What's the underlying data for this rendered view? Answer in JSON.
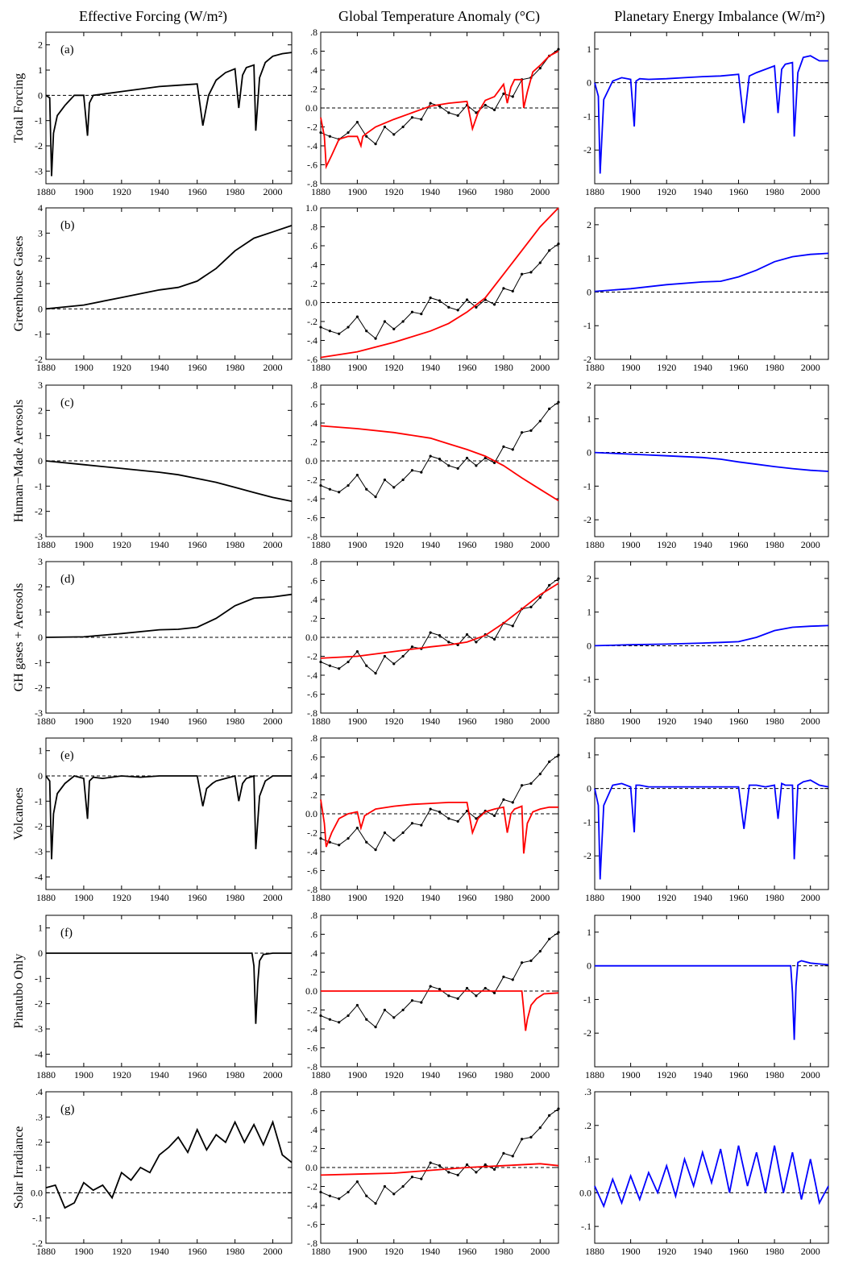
{
  "colors": {
    "observed": "#000000",
    "model_temp": "#ff0000",
    "imbalance": "#0000ff",
    "zero_line": "#000000"
  },
  "headers": [
    "Effective Forcing (W/m²)",
    "Global Temperature Anomaly (°C)",
    "Planetary Energy Imbalance (W/m²)"
  ],
  "x_axis": {
    "range": [
      1880,
      2010
    ],
    "ticks": [
      "1880",
      "1900",
      "1920",
      "1940",
      "1960",
      "1980",
      "2000"
    ]
  },
  "temperature_axis": {
    "ylim": [
      -0.8,
      0.8
    ],
    "ticks": [
      "-.8",
      "-.6",
      "-.4",
      "-.2",
      "0.0",
      ".2",
      ".4",
      ".6",
      ".8"
    ],
    "ticks_b": [
      "-.6",
      "-.4",
      "-.2",
      "0.0",
      ".2",
      ".4",
      ".6",
      ".8",
      "1.0"
    ],
    "ylim_b": [
      -0.6,
      1.0
    ]
  },
  "observed_temperature": {
    "years": [
      1880,
      1885,
      1890,
      1895,
      1900,
      1905,
      1910,
      1915,
      1920,
      1925,
      1930,
      1935,
      1940,
      1945,
      1950,
      1955,
      1960,
      1965,
      1970,
      1975,
      1980,
      1985,
      1990,
      1995,
      2000,
      2005,
      2010
    ],
    "values": [
      -0.26,
      -0.3,
      -0.33,
      -0.26,
      -0.15,
      -0.3,
      -0.38,
      -0.2,
      -0.28,
      -0.2,
      -0.1,
      -0.12,
      0.05,
      0.02,
      -0.05,
      -0.08,
      0.03,
      -0.05,
      0.03,
      -0.02,
      0.15,
      0.12,
      0.3,
      0.32,
      0.42,
      0.55,
      0.62
    ]
  },
  "rows": [
    {
      "id": "a",
      "panel_label": "(a)",
      "row_label": "Total Forcing",
      "forcing": {
        "ylim": [
          -3.5,
          2.5
        ],
        "ticks": [
          "-3",
          "-2",
          "-1",
          "0",
          "1",
          "2"
        ],
        "x": [
          1880,
          1882,
          1883,
          1884,
          1886,
          1890,
          1895,
          1900,
          1902,
          1903,
          1905,
          1910,
          1920,
          1930,
          1940,
          1950,
          1960,
          1963,
          1966,
          1970,
          1975,
          1980,
          1982,
          1984,
          1986,
          1990,
          1991,
          1993,
          1996,
          2000,
          2005,
          2010
        ],
        "y": [
          0,
          -0.1,
          -3.2,
          -1.5,
          -0.8,
          -0.4,
          0,
          0,
          -1.6,
          -0.3,
          0,
          0.05,
          0.15,
          0.25,
          0.35,
          0.4,
          0.45,
          -1.2,
          0,
          0.6,
          0.9,
          1.05,
          -0.5,
          0.8,
          1.1,
          1.2,
          -1.4,
          0.7,
          1.3,
          1.55,
          1.65,
          1.7
        ]
      },
      "model": {
        "x": [
          1880,
          1882,
          1883,
          1886,
          1890,
          1895,
          1900,
          1902,
          1903,
          1905,
          1910,
          1920,
          1930,
          1940,
          1950,
          1960,
          1963,
          1966,
          1970,
          1975,
          1980,
          1982,
          1984,
          1986,
          1990,
          1991,
          1993,
          1996,
          2000,
          2005,
          2010
        ],
        "y": [
          -0.1,
          -0.3,
          -0.62,
          -0.5,
          -0.33,
          -0.3,
          -0.3,
          -0.4,
          -0.3,
          -0.27,
          -0.2,
          -0.12,
          -0.05,
          0.02,
          0.05,
          0.07,
          -0.22,
          -0.05,
          0.08,
          0.12,
          0.25,
          0.05,
          0.22,
          0.3,
          0.3,
          0.0,
          0.17,
          0.38,
          0.45,
          0.55,
          0.6
        ]
      },
      "imbalance": {
        "ylim": [
          -3.0,
          1.5
        ],
        "ticks": [
          "-2",
          "-1",
          "0",
          "1"
        ],
        "x": [
          1880,
          1882,
          1883,
          1885,
          1890,
          1895,
          1900,
          1902,
          1903,
          1905,
          1910,
          1920,
          1930,
          1940,
          1950,
          1960,
          1963,
          1966,
          1970,
          1975,
          1980,
          1982,
          1984,
          1986,
          1990,
          1991,
          1993,
          1996,
          2000,
          2005,
          2010
        ],
        "y": [
          0,
          -0.4,
          -2.7,
          -0.5,
          0.05,
          0.15,
          0.1,
          -1.3,
          0.05,
          0.12,
          0.1,
          0.12,
          0.15,
          0.18,
          0.2,
          0.25,
          -1.2,
          0.2,
          0.3,
          0.4,
          0.5,
          -0.9,
          0.4,
          0.55,
          0.6,
          -1.6,
          0.3,
          0.75,
          0.8,
          0.65,
          0.65
        ]
      }
    },
    {
      "id": "b",
      "panel_label": "(b)",
      "row_label": "Greenhouse Gases",
      "forcing": {
        "ylim": [
          -2,
          4
        ],
        "ticks": [
          "-2",
          "-1",
          "0",
          "1",
          "2",
          "3",
          "4"
        ],
        "x": [
          1880,
          1900,
          1920,
          1940,
          1950,
          1960,
          1970,
          1980,
          1990,
          2000,
          2010
        ],
        "y": [
          0,
          0.15,
          0.45,
          0.75,
          0.85,
          1.1,
          1.6,
          2.3,
          2.8,
          3.05,
          3.3
        ]
      },
      "model": {
        "x": [
          1880,
          1900,
          1920,
          1940,
          1950,
          1960,
          1970,
          1980,
          1990,
          2000,
          2010
        ],
        "y": [
          -0.58,
          -0.52,
          -0.42,
          -0.3,
          -0.22,
          -0.1,
          0.05,
          0.3,
          0.55,
          0.8,
          1.0
        ]
      },
      "imbalance": {
        "ylim": [
          -2.0,
          2.5
        ],
        "ticks": [
          "-2",
          "-1",
          "0",
          "1",
          "2"
        ],
        "x": [
          1880,
          1900,
          1920,
          1940,
          1950,
          1960,
          1970,
          1980,
          1990,
          2000,
          2010
        ],
        "y": [
          0.02,
          0.1,
          0.22,
          0.3,
          0.32,
          0.45,
          0.65,
          0.9,
          1.05,
          1.12,
          1.15
        ]
      }
    },
    {
      "id": "c",
      "panel_label": "(c)",
      "row_label": "Human−Made Aerosols",
      "forcing": {
        "ylim": [
          -3,
          3
        ],
        "ticks": [
          "-3",
          "-2",
          "-1",
          "0",
          "1",
          "2",
          "3"
        ],
        "x": [
          1880,
          1900,
          1920,
          1940,
          1950,
          1960,
          1970,
          1980,
          1990,
          2000,
          2010
        ],
        "y": [
          0,
          -0.15,
          -0.3,
          -0.45,
          -0.55,
          -0.7,
          -0.85,
          -1.05,
          -1.25,
          -1.45,
          -1.6
        ]
      },
      "model": {
        "x": [
          1880,
          1900,
          1920,
          1940,
          1950,
          1960,
          1970,
          1980,
          1990,
          2000,
          2010
        ],
        "y": [
          0.37,
          0.34,
          0.3,
          0.24,
          0.18,
          0.12,
          0.05,
          -0.05,
          -0.18,
          -0.3,
          -0.42
        ]
      },
      "imbalance": {
        "ylim": [
          -2.5,
          2.0
        ],
        "ticks": [
          "-2",
          "-1",
          "0",
          "1",
          "2"
        ],
        "x": [
          1880,
          1900,
          1920,
          1940,
          1950,
          1960,
          1970,
          1980,
          1990,
          2000,
          2010
        ],
        "y": [
          0,
          -0.05,
          -0.1,
          -0.15,
          -0.2,
          -0.28,
          -0.35,
          -0.42,
          -0.48,
          -0.53,
          -0.56
        ]
      }
    },
    {
      "id": "d",
      "panel_label": "(d)",
      "row_label": "GH gases + Aerosols",
      "forcing": {
        "ylim": [
          -3,
          3
        ],
        "ticks": [
          "-3",
          "-2",
          "-1",
          "0",
          "1",
          "2",
          "3"
        ],
        "x": [
          1880,
          1900,
          1920,
          1940,
          1950,
          1960,
          1970,
          1980,
          1990,
          2000,
          2010
        ],
        "y": [
          0,
          0.02,
          0.15,
          0.3,
          0.32,
          0.4,
          0.75,
          1.25,
          1.55,
          1.6,
          1.7
        ]
      },
      "model": {
        "x": [
          1880,
          1900,
          1920,
          1940,
          1950,
          1960,
          1970,
          1980,
          1990,
          2000,
          2010
        ],
        "y": [
          -0.22,
          -0.2,
          -0.15,
          -0.1,
          -0.08,
          -0.05,
          0.02,
          0.15,
          0.3,
          0.45,
          0.57
        ]
      },
      "imbalance": {
        "ylim": [
          -2.0,
          2.5
        ],
        "ticks": [
          "-2",
          "-1",
          "0",
          "1",
          "2"
        ],
        "x": [
          1880,
          1900,
          1920,
          1940,
          1950,
          1960,
          1970,
          1980,
          1990,
          2000,
          2010
        ],
        "y": [
          0,
          0.03,
          0.05,
          0.08,
          0.1,
          0.12,
          0.25,
          0.45,
          0.55,
          0.58,
          0.6
        ]
      }
    },
    {
      "id": "e",
      "panel_label": "(e)",
      "row_label": "Volcanoes",
      "forcing": {
        "ylim": [
          -4.5,
          1.5
        ],
        "ticks": [
          "-4",
          "-3",
          "-2",
          "-1",
          "0",
          "1"
        ],
        "x": [
          1880,
          1882,
          1883,
          1884,
          1886,
          1890,
          1895,
          1900,
          1902,
          1903,
          1905,
          1910,
          1920,
          1930,
          1940,
          1950,
          1960,
          1963,
          1965,
          1968,
          1970,
          1975,
          1980,
          1982,
          1984,
          1986,
          1990,
          1991,
          1993,
          1996,
          2000,
          2005,
          2010
        ],
        "y": [
          0,
          -0.2,
          -3.3,
          -1.5,
          -0.7,
          -0.3,
          0,
          -0.1,
          -1.7,
          -0.2,
          -0.05,
          -0.1,
          0,
          -0.05,
          0,
          0,
          0,
          -1.2,
          -0.5,
          -0.3,
          -0.2,
          -0.1,
          0,
          -1.0,
          -0.3,
          -0.1,
          0,
          -2.9,
          -0.8,
          -0.2,
          0,
          0,
          0
        ]
      },
      "model": {
        "x": [
          1880,
          1882,
          1883,
          1886,
          1890,
          1895,
          1900,
          1902,
          1904,
          1910,
          1920,
          1930,
          1940,
          1950,
          1960,
          1963,
          1966,
          1970,
          1975,
          1980,
          1982,
          1984,
          1986,
          1990,
          1991,
          1993,
          1996,
          2000,
          2005,
          2010
        ],
        "y": [
          0.15,
          -0.1,
          -0.35,
          -0.2,
          -0.05,
          0,
          0.02,
          -0.15,
          -0.02,
          0.05,
          0.08,
          0.1,
          0.11,
          0.12,
          0.12,
          -0.2,
          -0.05,
          0.02,
          0.05,
          0.07,
          -0.2,
          0.0,
          0.05,
          0.08,
          -0.42,
          -0.1,
          0.02,
          0.05,
          0.07,
          0.07
        ]
      },
      "imbalance": {
        "ylim": [
          -3.0,
          1.5
        ],
        "ticks": [
          "-2",
          "-1",
          "0",
          "1"
        ],
        "x": [
          1880,
          1882,
          1883,
          1885,
          1890,
          1895,
          1900,
          1902,
          1903,
          1905,
          1910,
          1920,
          1930,
          1940,
          1950,
          1960,
          1963,
          1966,
          1970,
          1975,
          1980,
          1982,
          1984,
          1986,
          1990,
          1991,
          1993,
          1996,
          2000,
          2005,
          2010
        ],
        "y": [
          0,
          -0.5,
          -2.7,
          -0.5,
          0.1,
          0.15,
          0.05,
          -1.3,
          0.1,
          0.1,
          0.05,
          0.05,
          0.05,
          0.05,
          0.05,
          0.05,
          -1.2,
          0.1,
          0.1,
          0.05,
          0.1,
          -0.9,
          0.15,
          0.1,
          0.1,
          -2.1,
          0.1,
          0.2,
          0.25,
          0.1,
          0.05
        ]
      }
    },
    {
      "id": "f",
      "panel_label": "(f)",
      "row_label": "Pinatubo Only",
      "forcing": {
        "ylim": [
          -4.5,
          1.5
        ],
        "ticks": [
          "-4",
          "-3",
          "-2",
          "-1",
          "0",
          "1"
        ],
        "x": [
          1880,
          1989,
          1990,
          1991,
          1992,
          1993,
          1995,
          2000,
          2010
        ],
        "y": [
          0,
          0,
          -0.5,
          -2.8,
          -1.2,
          -0.3,
          -0.05,
          0,
          0
        ]
      },
      "model": {
        "x": [
          1880,
          1990,
          1991,
          1992,
          1993,
          1995,
          1998,
          2002,
          2010
        ],
        "y": [
          0,
          0,
          -0.2,
          -0.42,
          -0.3,
          -0.15,
          -0.08,
          -0.03,
          -0.02
        ]
      },
      "imbalance": {
        "ylim": [
          -3.0,
          1.5
        ],
        "ticks": [
          "-2",
          "-1",
          "0",
          "1"
        ],
        "x": [
          1880,
          1989,
          1990,
          1991,
          1992,
          1993,
          1995,
          2000,
          2010
        ],
        "y": [
          0,
          0,
          -0.8,
          -2.2,
          -0.6,
          0.1,
          0.15,
          0.08,
          0.03
        ]
      }
    },
    {
      "id": "g",
      "panel_label": "(g)",
      "row_label": "Solar Irradiance",
      "forcing": {
        "ylim": [
          -0.2,
          0.4
        ],
        "ticks": [
          "-.2",
          "-.1",
          "0.0",
          ".1",
          ".2",
          ".3",
          ".4"
        ],
        "x": [
          1880,
          1885,
          1890,
          1895,
          1900,
          1905,
          1910,
          1915,
          1920,
          1925,
          1930,
          1935,
          1940,
          1945,
          1950,
          1955,
          1960,
          1965,
          1970,
          1975,
          1980,
          1985,
          1990,
          1995,
          2000,
          2005,
          2010
        ],
        "y": [
          0.02,
          0.03,
          -0.06,
          -0.04,
          0.04,
          0.01,
          0.03,
          -0.02,
          0.08,
          0.05,
          0.1,
          0.08,
          0.15,
          0.18,
          0.22,
          0.16,
          0.25,
          0.17,
          0.23,
          0.2,
          0.28,
          0.2,
          0.27,
          0.19,
          0.28,
          0.15,
          0.12
        ]
      },
      "model": {
        "x": [
          1880,
          1900,
          1920,
          1940,
          1960,
          1980,
          2000,
          2010
        ],
        "y": [
          -0.08,
          -0.07,
          -0.06,
          -0.03,
          0.0,
          0.02,
          0.04,
          0.02
        ]
      },
      "imbalance": {
        "ylim": [
          -0.15,
          0.3
        ],
        "ticks": [
          "-.1",
          "0.0",
          ".1",
          ".2",
          ".3"
        ],
        "x": [
          1880,
          1885,
          1890,
          1895,
          1900,
          1905,
          1910,
          1915,
          1920,
          1925,
          1930,
          1935,
          1940,
          1945,
          1950,
          1955,
          1960,
          1965,
          1970,
          1975,
          1980,
          1985,
          1990,
          1995,
          2000,
          2005,
          2010
        ],
        "y": [
          0.02,
          -0.04,
          0.04,
          -0.03,
          0.05,
          -0.02,
          0.06,
          0.0,
          0.08,
          -0.01,
          0.1,
          0.02,
          0.12,
          0.03,
          0.13,
          0.0,
          0.14,
          0.02,
          0.12,
          0.0,
          0.14,
          0.0,
          0.12,
          -0.02,
          0.1,
          -0.03,
          0.02
        ]
      }
    }
  ]
}
